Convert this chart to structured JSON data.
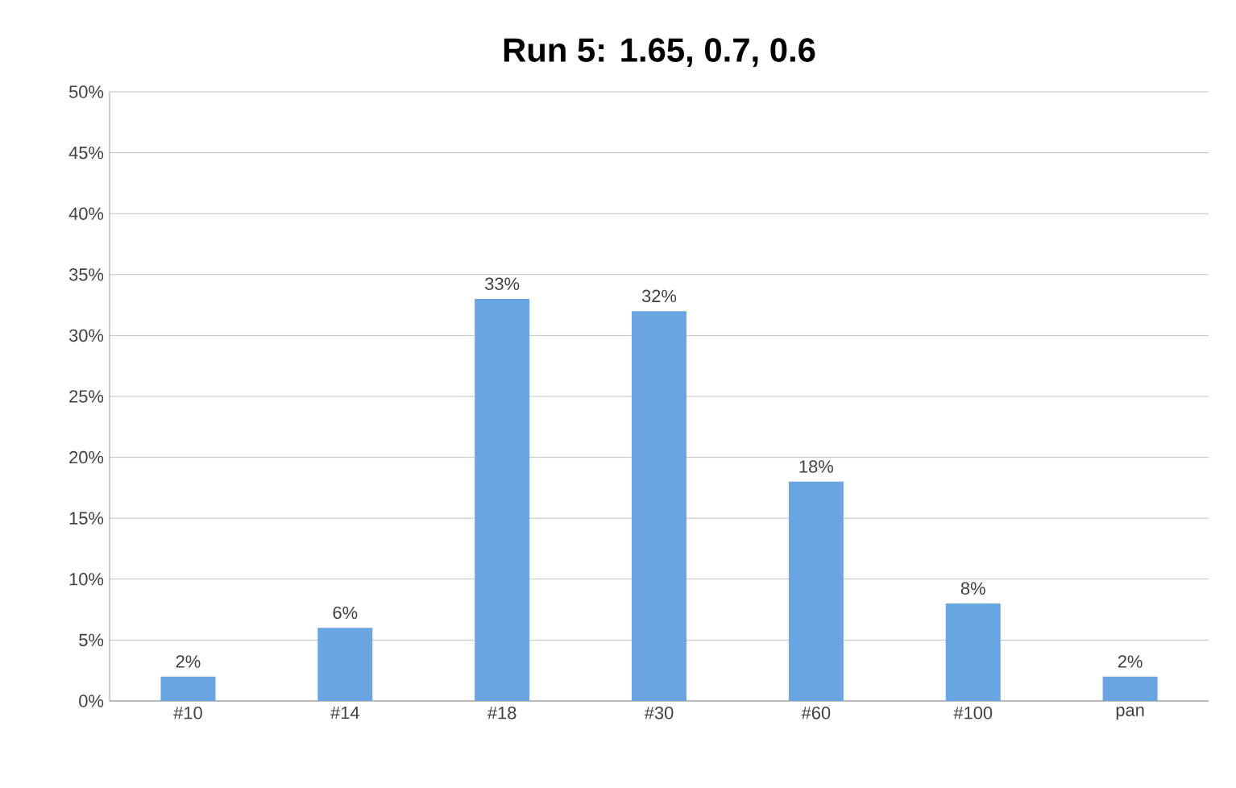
{
  "chart_data": {
    "type": "bar",
    "title": "Run 5: 1.65, 0.7, 0.6",
    "categories": [
      "#10",
      "#14",
      "#18",
      "#30",
      "#60",
      "#100",
      "pan"
    ],
    "values": [
      2,
      6,
      33,
      32,
      18,
      8,
      2
    ],
    "value_labels": [
      "2%",
      "6%",
      "33%",
      "32%",
      "18%",
      "8%",
      "2%"
    ],
    "color": "#6aa5e3",
    "ylim": [
      0,
      50
    ],
    "yticks": [
      {
        "value": 0,
        "label": "0%"
      },
      {
        "value": 5,
        "label": "5%"
      },
      {
        "value": 10,
        "label": "10%"
      },
      {
        "value": 15,
        "label": "15%"
      },
      {
        "value": 20,
        "label": "20%"
      },
      {
        "value": 25,
        "label": "25%"
      },
      {
        "value": 30,
        "label": "30%"
      },
      {
        "value": 35,
        "label": "35%"
      },
      {
        "value": 40,
        "label": "40%"
      },
      {
        "value": 45,
        "label": "45%"
      },
      {
        "value": 50,
        "label": "50%"
      }
    ],
    "grid": "y"
  }
}
